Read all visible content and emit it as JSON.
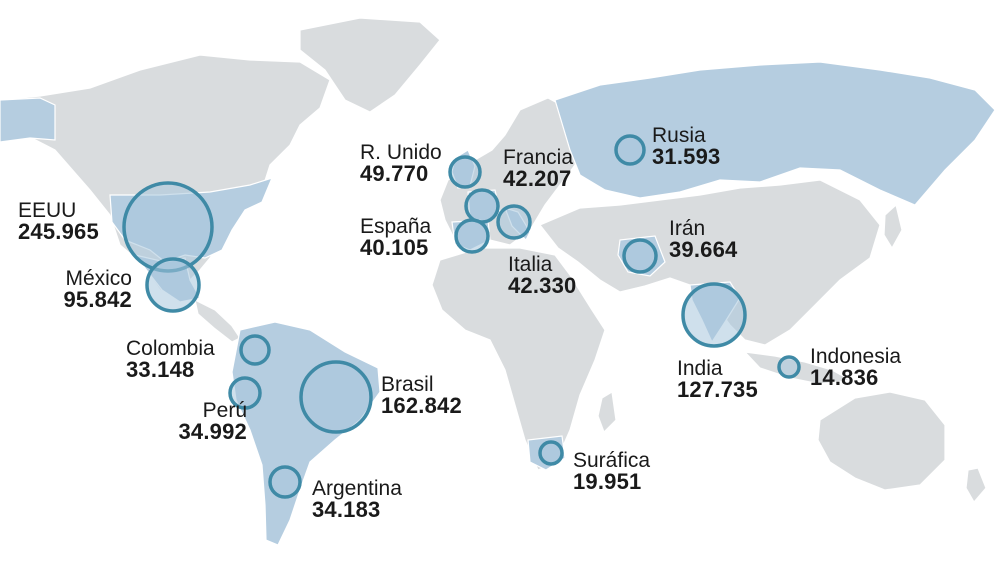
{
  "map": {
    "bubble_color": "#3f8aa6",
    "land_color": "#d9dcde",
    "highlight_color": "#b5cde0",
    "countries": [
      {
        "id": "eeuu",
        "name": "EEUU",
        "value": "245.965",
        "amount": 245965
      },
      {
        "id": "mexico",
        "name": "México",
        "value": "95.842",
        "amount": 95842
      },
      {
        "id": "colombia",
        "name": "Colombia",
        "value": "33.148",
        "amount": 33148
      },
      {
        "id": "peru",
        "name": "Perú",
        "value": "34.992",
        "amount": 34992
      },
      {
        "id": "brasil",
        "name": "Brasil",
        "value": "162.842",
        "amount": 162842
      },
      {
        "id": "argentina",
        "name": "Argentina",
        "value": "34.183",
        "amount": 34183
      },
      {
        "id": "reino-unido",
        "name": "R. Unido",
        "value": "49.770",
        "amount": 49770
      },
      {
        "id": "francia",
        "name": "Francia",
        "value": "42.207",
        "amount": 42207
      },
      {
        "id": "espana",
        "name": "España",
        "value": "40.105",
        "amount": 40105
      },
      {
        "id": "italia",
        "name": "Italia",
        "value": "42.330",
        "amount": 42330
      },
      {
        "id": "rusia",
        "name": "Rusia",
        "value": "31.593",
        "amount": 31593
      },
      {
        "id": "iran",
        "name": "Irán",
        "value": "39.664",
        "amount": 39664
      },
      {
        "id": "india",
        "name": "India",
        "value": "127.735",
        "amount": 127735
      },
      {
        "id": "indonesia",
        "name": "Indonesia",
        "value": "14.836",
        "amount": 14836
      },
      {
        "id": "surafrica",
        "name": "Suráfica",
        "value": "19.951",
        "amount": 19951
      }
    ]
  }
}
